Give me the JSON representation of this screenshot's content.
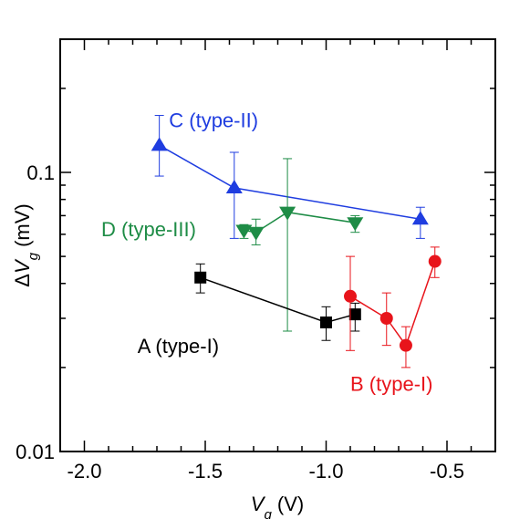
{
  "chart_data": {
    "type": "scatter",
    "title": "",
    "xlabel": {
      "symbol": "V",
      "sub": "g",
      "unit": " (V)"
    },
    "ylabel": {
      "prefix": "Δ",
      "symbol": "V",
      "sub": "g",
      "unit": " (mV)"
    },
    "xlim": [
      -2.1,
      -0.3
    ],
    "ylim": [
      0.01,
      0.3
    ],
    "yscale": "log",
    "grid": false,
    "legend": "none",
    "x_ticks": [
      {
        "value": -2.0,
        "label": "-2.0"
      },
      {
        "value": -1.5,
        "label": "-1.5"
      },
      {
        "value": -1.0,
        "label": "-1.0"
      },
      {
        "value": -0.5,
        "label": "-0.5"
      }
    ],
    "y_ticks": [
      {
        "value": 0.01,
        "label": "0.01"
      },
      {
        "value": 0.1,
        "label": "0.1"
      }
    ],
    "series": [
      {
        "label": "C (type-II)",
        "color": "#1f3de0",
        "marker": "triangle-up",
        "connected": true,
        "label_at": [
          -1.65,
          0.145
        ],
        "points": [
          {
            "x": -1.69,
            "y": 0.125,
            "err_low": 0.097,
            "err_high": 0.16
          },
          {
            "x": -1.38,
            "y": 0.088,
            "err_low": 0.058,
            "err_high": 0.118
          },
          {
            "x": -0.61,
            "y": 0.068,
            "err_low": 0.058,
            "err_high": 0.075
          }
        ]
      },
      {
        "label": "D (type-III)",
        "color": "#1e8c46",
        "marker": "triangle-down",
        "connected": true,
        "label_at": [
          -1.93,
          0.059
        ],
        "points": [
          {
            "x": -1.34,
            "y": 0.062,
            "err_low": 0.058,
            "err_high": 0.065
          },
          {
            "x": -1.29,
            "y": 0.061,
            "err_low": 0.055,
            "err_high": 0.068
          },
          {
            "x": -1.16,
            "y": 0.072,
            "err_low": 0.027,
            "err_high": 0.112
          },
          {
            "x": -0.88,
            "y": 0.066,
            "err_low": 0.061,
            "err_high": 0.07
          }
        ]
      },
      {
        "label": "A (type-I)",
        "color": "#000000",
        "marker": "square",
        "connected": true,
        "label_at": [
          -1.78,
          0.0225
        ],
        "points": [
          {
            "x": -1.52,
            "y": 0.042,
            "err_low": 0.037,
            "err_high": 0.047
          },
          {
            "x": -1.0,
            "y": 0.029,
            "err_low": 0.025,
            "err_high": 0.033
          },
          {
            "x": -0.88,
            "y": 0.031,
            "err_low": 0.027,
            "err_high": 0.034
          }
        ]
      },
      {
        "label": "B (type-I)",
        "color": "#e8141b",
        "marker": "circle",
        "connected": true,
        "label_at": [
          -0.9,
          0.0165
        ],
        "points": [
          {
            "x": -0.9,
            "y": 0.036,
            "err_low": 0.023,
            "err_high": 0.05
          },
          {
            "x": -0.75,
            "y": 0.03,
            "err_low": 0.024,
            "err_high": 0.037
          },
          {
            "x": -0.67,
            "y": 0.024,
            "err_low": 0.02,
            "err_high": 0.028
          },
          {
            "x": -0.55,
            "y": 0.048,
            "err_low": 0.042,
            "err_high": 0.054
          }
        ]
      }
    ]
  }
}
